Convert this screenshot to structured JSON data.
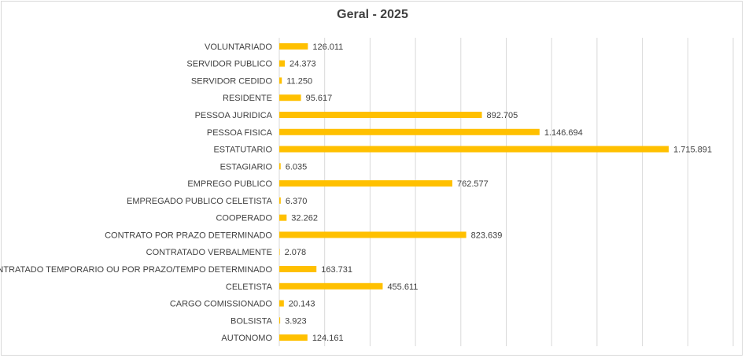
{
  "chart_data": {
    "type": "bar",
    "orientation": "horizontal",
    "title": "Geral - 2025",
    "xlabel": "",
    "ylabel": "",
    "xlim": [
      0,
      2000000
    ],
    "grid": true,
    "legend": "none",
    "bar_color": "#FFC000",
    "categories": [
      "VOLUNTARIADO",
      "SERVIDOR PUBLICO",
      "SERVIDOR CEDIDO",
      "RESIDENTE",
      "PESSOA JURIDICA",
      "PESSOA FISICA",
      "ESTATUTARIO",
      "ESTAGIARIO",
      "EMPREGO PUBLICO",
      "EMPREGADO PUBLICO CELETISTA",
      "COOPERADO",
      "CONTRATO POR PRAZO DETERMINADO",
      "CONTRATADO VERBALMENTE",
      "CONTRATADO TEMPORARIO OU POR PRAZO/TEMPO DETERMINADO",
      "CELETISTA",
      "CARGO COMISSIONADO",
      "BOLSISTA",
      "AUTONOMO"
    ],
    "values": [
      126011,
      24373,
      11250,
      95617,
      892705,
      1146694,
      1715891,
      6035,
      762577,
      6370,
      32262,
      823639,
      2078,
      163731,
      455611,
      20143,
      3923,
      124161
    ],
    "data_labels": [
      "126.011",
      "24.373",
      "11.250",
      "95.617",
      "892.705",
      "1.146.694",
      "1.715.891",
      "6.035",
      "762.577",
      "6.370",
      "32.262",
      "823.639",
      "2.078",
      "163.731",
      "455.611",
      "20.143",
      "3.923",
      "124.161"
    ]
  }
}
